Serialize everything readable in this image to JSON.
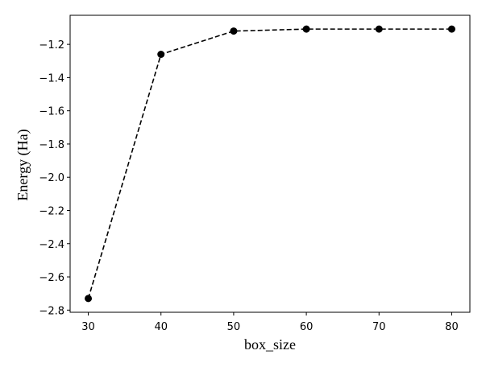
{
  "chart_data": {
    "type": "line",
    "title": "",
    "xlabel": "box_size",
    "ylabel": "Energy (Ha)",
    "x": [
      30,
      40,
      50,
      60,
      70,
      80
    ],
    "series": [
      {
        "values": [
          -2.73,
          -1.26,
          -1.12,
          -1.108,
          -1.108,
          -1.108
        ],
        "color": "#000000",
        "line_style": "dashed",
        "marker": "circle"
      }
    ],
    "xlim": [
      27.5,
      82.5
    ],
    "ylim": [
      -2.813,
      -1.025
    ],
    "xticks": [
      30,
      40,
      50,
      60,
      70,
      80
    ],
    "xtick_labels": [
      "30",
      "40",
      "50",
      "60",
      "70",
      "80"
    ],
    "yticks": [
      -2.8,
      -2.6,
      -2.4,
      -2.2,
      -2.0,
      -1.8,
      -1.6,
      -1.4,
      -1.2
    ],
    "ytick_labels": [
      "−2.8",
      "−2.6",
      "−2.4",
      "−2.2",
      "−2.0",
      "−1.8",
      "−1.6",
      "−1.4",
      "−1.2"
    ],
    "grid": false,
    "legend": false
  }
}
